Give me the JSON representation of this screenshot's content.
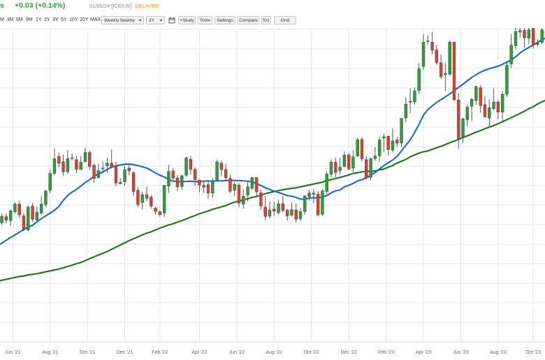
{
  "header": {
    "ticker_fragment": "s",
    "change_text": "+0.03 (+0.14%)",
    "change_color": "#2e9e3b",
    "date": "01/05/24",
    "exchange": "[ICE/US]",
    "delayed": "DELAYED"
  },
  "toolbar": {
    "timeframes": [
      "M",
      "3M",
      "6M",
      "9M",
      "1Y",
      "2Y",
      "3Y",
      "5Y",
      "10Y",
      "20Y",
      "MAX"
    ],
    "active_timeframe": "3Y",
    "aggregation_select": "Weekly Nearby",
    "range_select": "3Y",
    "study_button": "+Study",
    "tools_button": "Tools",
    "settings_button": "Settings",
    "compare_button": "Compare",
    "fx_button": "f(x)",
    "grid_button": "Grid",
    "calendar_icon": "calendar-icon"
  },
  "colors": {
    "up": "#2e9e3b",
    "down": "#d4452f",
    "ma_fast": "#1f6fc7",
    "ma_slow": "#1f7a1f",
    "grid": "#e4e4e4",
    "accent": "#2b6cc4"
  },
  "chart_data": {
    "type": "candlestick",
    "period": "weekly",
    "x_tick_labels": [
      "Jun '21",
      "Aug '21",
      "Oct '21",
      "Dec '21",
      "Feb '22",
      "Apr '22",
      "Jun '22",
      "Aug '22",
      "Oct '22",
      "Dec '22",
      "Feb '23",
      "Apr '23",
      "Jun '23",
      "Aug '23",
      "Oct '23"
    ],
    "x_tick_index": [
      4.5,
      13,
      21.5,
      30,
      38,
      47,
      55.5,
      64,
      72.5,
      81,
      89.5,
      98,
      106.5,
      115,
      123
    ],
    "ylim": [
      0,
      100
    ],
    "grid": true,
    "series": [
      {
        "name": "",
        "type": "candles",
        "candles": [
          [
            39.5,
            40.5,
            41.6,
            38.6
          ],
          [
            40.6,
            37.8,
            41.4,
            37.1
          ],
          [
            38.1,
            40.2,
            41,
            37.4
          ],
          [
            40.1,
            38.9,
            41.1,
            37.9
          ],
          [
            38.8,
            41.9,
            42.5,
            37.1
          ],
          [
            41.6,
            44.1,
            44.6,
            41.1
          ],
          [
            44.1,
            40.6,
            45.2,
            39.6
          ],
          [
            40.3,
            36,
            41.2,
            35.4
          ],
          [
            35.8,
            43.1,
            43.6,
            35.3
          ],
          [
            43.4,
            39.2,
            44.4,
            38.5
          ],
          [
            39,
            41.5,
            43.3,
            38.7
          ],
          [
            41.2,
            44.1,
            46.7,
            40.6
          ],
          [
            43.9,
            48.3,
            48.7,
            43.1
          ],
          [
            48.5,
            53.9,
            55.1,
            47.6
          ],
          [
            53.9,
            58.6,
            61.9,
            53.3
          ],
          [
            59.3,
            57.1,
            60.4,
            55.8
          ],
          [
            57.6,
            54.4,
            59.9,
            53.2
          ],
          [
            54.4,
            58.6,
            61.3,
            53.7
          ],
          [
            58.9,
            58.9,
            60.3,
            58
          ],
          [
            58.3,
            55.2,
            59.5,
            54.1
          ],
          [
            55.1,
            57.5,
            59.5,
            55.3
          ],
          [
            57.7,
            60.6,
            62.2,
            57.3
          ],
          [
            60.6,
            56.1,
            61.2,
            55
          ],
          [
            56.5,
            52.3,
            57,
            50.8
          ],
          [
            52.5,
            54.8,
            57,
            52.3
          ],
          [
            55.4,
            55.6,
            57.7,
            54.2
          ],
          [
            56.3,
            57.2,
            58.9,
            54.1
          ],
          [
            57.2,
            56,
            61.5,
            55.6
          ],
          [
            56.2,
            50.8,
            57.6,
            49.8
          ],
          [
            50.6,
            51.1,
            52.4,
            50.3
          ],
          [
            51.2,
            55.1,
            56.2,
            50
          ],
          [
            55.6,
            54.7,
            56.8,
            53.3
          ],
          [
            54.1,
            48.1,
            54.6,
            46.7
          ],
          [
            48.5,
            43.9,
            49.4,
            43.2
          ],
          [
            44.6,
            47.1,
            48.1,
            42.3
          ],
          [
            47.1,
            45.9,
            49.7,
            45
          ],
          [
            46.3,
            43.4,
            47,
            42.7
          ],
          [
            42.8,
            41.7,
            43.3,
            40.8
          ],
          [
            41.7,
            40.7,
            41.9,
            40.1
          ],
          [
            41.2,
            50.1,
            50.1,
            40
          ],
          [
            49.8,
            54.5,
            56.6,
            47.6
          ],
          [
            54.7,
            52.4,
            55.6,
            51.8
          ],
          [
            52.4,
            49.6,
            53.4,
            48.3
          ],
          [
            49.7,
            53.2,
            53.3,
            48.7
          ],
          [
            53.3,
            58.9,
            59.2,
            52.8
          ],
          [
            58.4,
            55.2,
            59.5,
            53.5
          ],
          [
            55.2,
            51.9,
            55.9,
            49.9
          ],
          [
            51.8,
            50.2,
            51.9,
            47.9
          ],
          [
            49.5,
            50.1,
            51.1,
            47.6
          ],
          [
            50.3,
            47.6,
            51.3,
            45.8
          ],
          [
            47.6,
            51.6,
            52.4,
            46.1
          ],
          [
            51.5,
            57.6,
            58.3,
            51.3
          ],
          [
            57.2,
            55.1,
            58,
            53
          ],
          [
            55.2,
            52.5,
            56.9,
            51.4
          ],
          [
            52.3,
            48.2,
            53.4,
            47.6
          ],
          [
            48.5,
            50.4,
            51,
            46.6
          ],
          [
            50.2,
            44.4,
            50.8,
            43.1
          ],
          [
            44.1,
            46.6,
            48.8,
            42.6
          ],
          [
            47,
            49.6,
            51.3,
            45
          ],
          [
            49.1,
            52.6,
            52.6,
            48.7
          ],
          [
            52.6,
            48,
            52.7,
            46.6
          ],
          [
            47.7,
            43.5,
            48.7,
            42.4
          ],
          [
            43.1,
            40.1,
            46.6,
            38.8
          ],
          [
            40.2,
            42.2,
            44.9,
            39.4
          ],
          [
            42.5,
            41.8,
            44.8,
            40.3
          ],
          [
            41.3,
            44.2,
            45.4,
            40.8
          ],
          [
            44.2,
            42,
            46.7,
            41.4
          ],
          [
            42.2,
            40.3,
            42.4,
            38.8
          ],
          [
            40.5,
            42.3,
            44.6,
            40.1
          ],
          [
            42.2,
            39.2,
            44.2,
            38.2
          ],
          [
            39.4,
            41.7,
            42.9,
            38.7
          ],
          [
            41.7,
            46.7,
            46.9,
            40.7
          ],
          [
            46.5,
            47.6,
            48.6,
            45.2
          ],
          [
            47.2,
            47.6,
            48.8,
            44.4
          ],
          [
            47.3,
            40.6,
            48.2,
            40.1
          ],
          [
            40.8,
            48.3,
            48.9,
            40.3
          ],
          [
            48.1,
            53.7,
            54.5,
            47.2
          ],
          [
            53.6,
            57.5,
            58.4,
            52.5
          ],
          [
            57.5,
            54.2,
            59,
            52.7
          ],
          [
            54.8,
            55.9,
            58.9,
            53.6
          ],
          [
            56.1,
            59.8,
            61,
            55.8
          ],
          [
            59.8,
            55.3,
            60.5,
            55
          ],
          [
            55.6,
            59.2,
            61.3,
            54.4
          ],
          [
            59.4,
            64.7,
            65.3,
            59.2
          ],
          [
            64.8,
            58.6,
            65.5,
            57.7
          ],
          [
            58.3,
            52.5,
            59.5,
            51.8
          ],
          [
            52.6,
            58.6,
            59,
            51.9
          ],
          [
            58.6,
            59.5,
            62.3,
            57.9
          ],
          [
            59.5,
            64.6,
            65.7,
            57.6
          ],
          [
            65.2,
            65.6,
            66.7,
            60.8
          ],
          [
            65.8,
            61.5,
            66,
            59.6
          ],
          [
            61.3,
            64.3,
            68.4,
            60.6
          ],
          [
            64.6,
            63.6,
            65.6,
            62.2
          ],
          [
            63.6,
            71.5,
            71.6,
            62.3
          ],
          [
            71.6,
            76.1,
            78.1,
            70.2
          ],
          [
            76.7,
            77,
            81.1,
            73.1
          ],
          [
            76.8,
            80.3,
            81.4,
            75.9
          ],
          [
            80.4,
            87.4,
            89.2,
            79.4
          ],
          [
            88.1,
            95.9,
            98.5,
            87
          ],
          [
            96.3,
            96.1,
            98.1,
            95
          ],
          [
            95.9,
            93.3,
            99.2,
            92
          ],
          [
            93.4,
            89.3,
            95.1,
            88.6
          ],
          [
            89.3,
            84.8,
            92,
            84.1
          ],
          [
            85.5,
            85.9,
            89.2,
            80.3
          ],
          [
            85.6,
            95.9,
            96.4,
            85.2
          ],
          [
            95.9,
            77.4,
            95.9,
            77.2
          ],
          [
            77.4,
            65,
            79.5,
            61.8
          ],
          [
            65.6,
            71.3,
            71.8,
            63.6
          ],
          [
            71.1,
            75.1,
            76,
            69
          ],
          [
            75.4,
            77.6,
            78.1,
            70.7
          ],
          [
            77.2,
            81.7,
            81.9,
            75.8
          ],
          [
            81.3,
            75.6,
            82.1,
            73.3
          ],
          [
            75.9,
            72,
            78.6,
            71.7
          ],
          [
            71.6,
            74.9,
            77.6,
            68.5
          ],
          [
            74.6,
            76.7,
            81.1,
            74.1
          ],
          [
            76.7,
            73.5,
            77.3,
            71.2
          ],
          [
            73.5,
            79.2,
            80.1,
            70.1
          ],
          [
            79.2,
            88.5,
            89.6,
            78.3
          ],
          [
            88.9,
            94.9,
            98.5,
            87.7
          ],
          [
            94.7,
            99.3,
            101.6,
            93.6
          ],
          [
            99.1,
            99.6,
            101.2,
            97.4
          ],
          [
            99.7,
            97.3,
            103.2,
            94.2
          ],
          [
            97.2,
            99.8,
            103.9,
            95.3
          ],
          [
            100.3,
            94.9,
            101.3,
            93.9
          ],
          [
            95.1,
            95.5,
            96.8,
            94.4
          ],
          [
            95.8,
            99.8,
            100.6,
            95.2
          ],
          [
            99.5,
            96.8,
            100.1,
            95.9
          ]
        ]
      },
      {
        "name": "",
        "type": "line",
        "color": "#1f6fc7",
        "values": [
          29.9,
          30.8,
          31.6,
          32.5,
          33.4,
          34.2,
          35.1,
          35.9,
          36.8,
          37.3,
          38.4,
          39.4,
          40.3,
          41.2,
          42.1,
          43.3,
          45.3,
          46.8,
          47.9,
          48.8,
          49.8,
          51,
          51.9,
          53,
          53.7,
          54.3,
          55.2,
          55.9,
          56.3,
          56.6,
          56.8,
          56.9,
          56.7,
          56.4,
          56,
          55.6,
          54.9,
          54,
          53.3,
          52.8,
          52,
          51.4,
          51.3,
          51.3,
          51.3,
          51.4,
          51.3,
          51.2,
          51.4,
          51.5,
          51.4,
          51.5,
          51.5,
          51.6,
          51.7,
          51.6,
          51.6,
          51.5,
          51.4,
          51.2,
          50.6,
          50,
          49.3,
          48.8,
          48.2,
          47.8,
          47.3,
          46.8,
          46.6,
          46.2,
          45.7,
          45.6,
          46,
          46.1,
          46.1,
          46.4,
          46.8,
          47.7,
          48.3,
          48.6,
          49.6,
          50.1,
          50.7,
          51.5,
          51.9,
          52.5,
          53.3,
          54.2,
          55.3,
          56.4,
          57.3,
          58.2,
          59.3,
          61.1,
          62.9,
          64.6,
          67,
          69.6,
          72.5,
          74.3,
          75.5,
          76.6,
          77.5,
          78.4,
          79.3,
          80.4,
          81.4,
          82.4,
          83.5,
          84.6,
          85.5,
          86.3,
          86.9,
          87.4,
          87.8,
          88.2,
          88.8,
          89.5,
          90.2,
          91.2,
          92.4,
          93.4,
          94.2,
          95,
          95.8,
          96.7,
          97.3,
          97.6,
          97.6
        ]
      },
      {
        "name": "",
        "type": "line",
        "color": "#1f7a1f",
        "values": [
          19,
          19.3,
          19.7,
          20,
          20.3,
          20.6,
          20.9,
          21.1,
          21.4,
          21.6,
          21.8,
          22.1,
          22.4,
          22.7,
          23,
          23.3,
          23.7,
          24.1,
          24.5,
          25,
          25.4,
          26,
          26.6,
          27.2,
          27.8,
          28.3,
          28.9,
          29.6,
          30.3,
          31,
          31.7,
          32.4,
          33,
          33.6,
          34.2,
          34.8,
          35.2,
          35.8,
          36.4,
          36.9,
          37.4,
          37.8,
          38.3,
          38.8,
          39.3,
          39.9,
          40.4,
          41,
          41.4,
          41.9,
          42.4,
          42.8,
          43.2,
          43.6,
          44.2,
          44.7,
          45,
          45.5,
          45.8,
          46.2,
          46.5,
          46.9,
          47.4,
          47.8,
          48.1,
          48.4,
          48.7,
          48.9,
          49.1,
          49.3,
          49.6,
          49.9,
          50.2,
          50.5,
          50.8,
          51.1,
          51.6,
          51.9,
          52.3,
          52.6,
          53,
          53.4,
          53.9,
          54.1,
          54.4,
          54.5,
          54.6,
          54.7,
          55,
          55.3,
          55.9,
          56.4,
          57.2,
          57.8,
          58.4,
          59.2,
          59.8,
          60.4,
          60.8,
          61.1,
          61.6,
          62.1,
          62.6,
          63.1,
          63.7,
          64.2,
          64.8,
          65.4,
          65.9,
          66.5,
          67.1,
          67.6,
          68.2,
          68.7,
          69.2,
          69.8,
          70.4,
          71.1,
          71.7,
          72.4,
          73.1,
          73.8,
          74.6,
          75.2,
          76.1,
          76.8,
          77.4,
          78.1
        ]
      }
    ]
  }
}
